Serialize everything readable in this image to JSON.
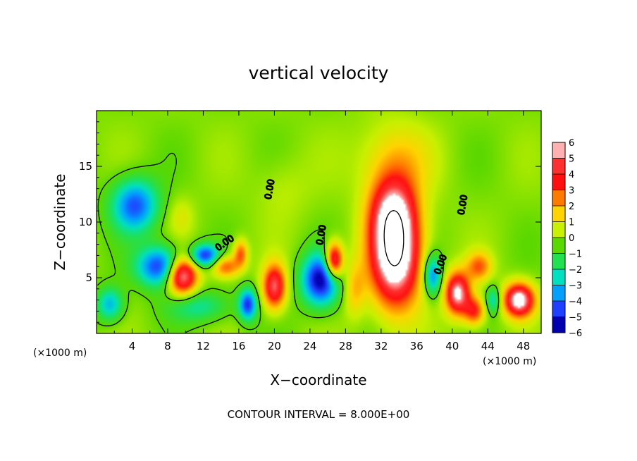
{
  "chart_data": {
    "type": "heatmap",
    "title": "vertical velocity",
    "xlabel": "X−coordinate",
    "ylabel": "Z−coordinate",
    "x_unit_left": "(×1000 m)",
    "x_unit_right": "(×1000 m)",
    "footer": "CONTOUR INTERVAL = 8.000E+00",
    "xlim": [
      0,
      50
    ],
    "ylim": [
      0,
      20
    ],
    "x_ticks": [
      4,
      8,
      12,
      16,
      20,
      24,
      28,
      32,
      36,
      40,
      44,
      48
    ],
    "y_ticks": [
      5,
      10,
      15
    ],
    "contour_labels": [
      "0.00",
      "0.00",
      "0.00",
      "0.00",
      "0.00"
    ],
    "colorbar": {
      "levels": [
        "6",
        "5",
        "4",
        "3",
        "2",
        "1",
        "0",
        "−1",
        "−2",
        "−3",
        "−4",
        "−5",
        "−6"
      ],
      "colors": [
        "#ffb0b0",
        "#ff3030",
        "#ff1010",
        "#ff7a00",
        "#ffd400",
        "#c8f000",
        "#5ad800",
        "#22e050",
        "#00e0c0",
        "#00a0ff",
        "#2040ff",
        "#0000b0",
        "#8000c0"
      ]
    },
    "features": [
      {
        "x": 4.3,
        "y": 11.5,
        "w": -4.2,
        "rx": 2.6,
        "ry": 2.4
      },
      {
        "x": 7.2,
        "y": 6.0,
        "w": -4.8,
        "rx": 2.6,
        "ry": 1.8
      },
      {
        "x": 12.2,
        "y": 7.0,
        "w": -4.5,
        "rx": 1.6,
        "ry": 1.0
      },
      {
        "x": 9.6,
        "y": 5.2,
        "w": 6.5,
        "rx": 1.7,
        "ry": 1.7
      },
      {
        "x": 1.5,
        "y": 2.6,
        "w": -3.0,
        "rx": 1.5,
        "ry": 1.5
      },
      {
        "x": 11.5,
        "y": 2.4,
        "w": -2.0,
        "rx": 3.5,
        "ry": 1.4
      },
      {
        "x": 14.5,
        "y": 6.0,
        "w": 3.2,
        "rx": 1.6,
        "ry": 1.0
      },
      {
        "x": 17.0,
        "y": 2.6,
        "w": -4.5,
        "rx": 1.0,
        "ry": 1.4
      },
      {
        "x": 20.0,
        "y": 4.2,
        "w": 5.0,
        "rx": 1.3,
        "ry": 2.0
      },
      {
        "x": 16.2,
        "y": 7.2,
        "w": 3.0,
        "rx": 0.8,
        "ry": 1.2
      },
      {
        "x": 25.2,
        "y": 4.8,
        "w": -5.5,
        "rx": 2.1,
        "ry": 2.3
      },
      {
        "x": 26.7,
        "y": 6.5,
        "w": 6.0,
        "rx": 1.0,
        "ry": 1.6
      },
      {
        "x": 29.0,
        "y": 4.0,
        "w": 1.8,
        "rx": 1.2,
        "ry": 2.5
      },
      {
        "x": 33.6,
        "y": 7.0,
        "w": 7.5,
        "rx": 2.8,
        "ry": 4.6
      },
      {
        "x": 33.3,
        "y": 11.0,
        "w": 3.8,
        "rx": 2.6,
        "ry": 3.2
      },
      {
        "x": 33.5,
        "y": 15.5,
        "w": 1.8,
        "rx": 4.0,
        "ry": 3.5
      },
      {
        "x": 37.8,
        "y": 5.2,
        "w": -3.8,
        "rx": 1.0,
        "ry": 1.8
      },
      {
        "x": 40.6,
        "y": 3.6,
        "w": 6.0,
        "rx": 1.4,
        "ry": 1.9
      },
      {
        "x": 43.0,
        "y": 6.0,
        "w": 2.8,
        "rx": 1.4,
        "ry": 1.3
      },
      {
        "x": 42.5,
        "y": 2.0,
        "w": 3.5,
        "rx": 1.2,
        "ry": 1.3
      },
      {
        "x": 44.6,
        "y": 3.0,
        "w": -2.5,
        "rx": 0.8,
        "ry": 1.2
      },
      {
        "x": 47.5,
        "y": 3.0,
        "w": 6.5,
        "rx": 1.7,
        "ry": 1.5
      },
      {
        "x": 21.0,
        "y": 13.0,
        "w": 0.6,
        "rx": 3.0,
        "ry": 3.0
      },
      {
        "x": 9.5,
        "y": 10.5,
        "w": 0.9,
        "rx": 1.5,
        "ry": 1.8
      }
    ]
  }
}
